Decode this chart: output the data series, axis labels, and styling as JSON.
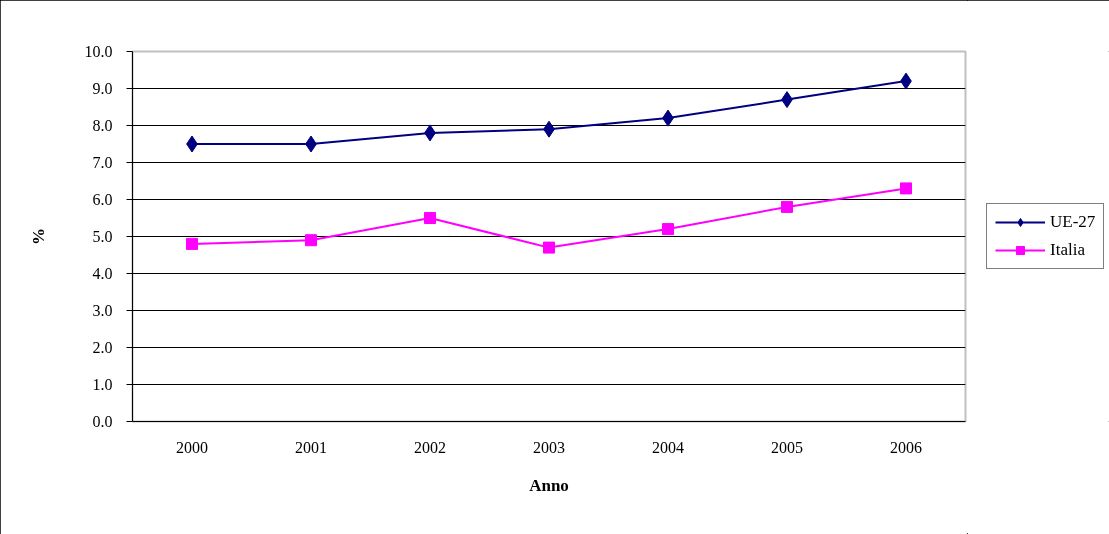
{
  "chart_data": {
    "type": "line",
    "xlabel": "Anno",
    "ylabel": "%",
    "categories": [
      "2000",
      "2001",
      "2002",
      "2003",
      "2004",
      "2005",
      "2006"
    ],
    "series": [
      {
        "name": "UE-27",
        "color": "#000080",
        "marker": "diamond",
        "values": [
          7.5,
          7.5,
          7.8,
          7.9,
          8.2,
          8.7,
          9.2
        ]
      },
      {
        "name": "Italia",
        "color": "#ff00ff",
        "marker": "square",
        "values": [
          4.8,
          4.9,
          5.5,
          4.7,
          5.2,
          5.8,
          6.3
        ]
      }
    ],
    "ylim": [
      0,
      10
    ],
    "yticks": [
      {
        "value": 0,
        "label": "0.0"
      },
      {
        "value": 1,
        "label": "1.0"
      },
      {
        "value": 2,
        "label": "2.0"
      },
      {
        "value": 3,
        "label": "3.0"
      },
      {
        "value": 4,
        "label": "4.0"
      },
      {
        "value": 5,
        "label": "5.0"
      },
      {
        "value": 6,
        "label": "6.0"
      },
      {
        "value": 7,
        "label": "7.0"
      },
      {
        "value": 8,
        "label": "8.0"
      },
      {
        "value": 9,
        "label": "9.0"
      },
      {
        "value": 10,
        "label": "10.0"
      }
    ],
    "grid": "y",
    "legend": "right",
    "line_style": "solid"
  }
}
